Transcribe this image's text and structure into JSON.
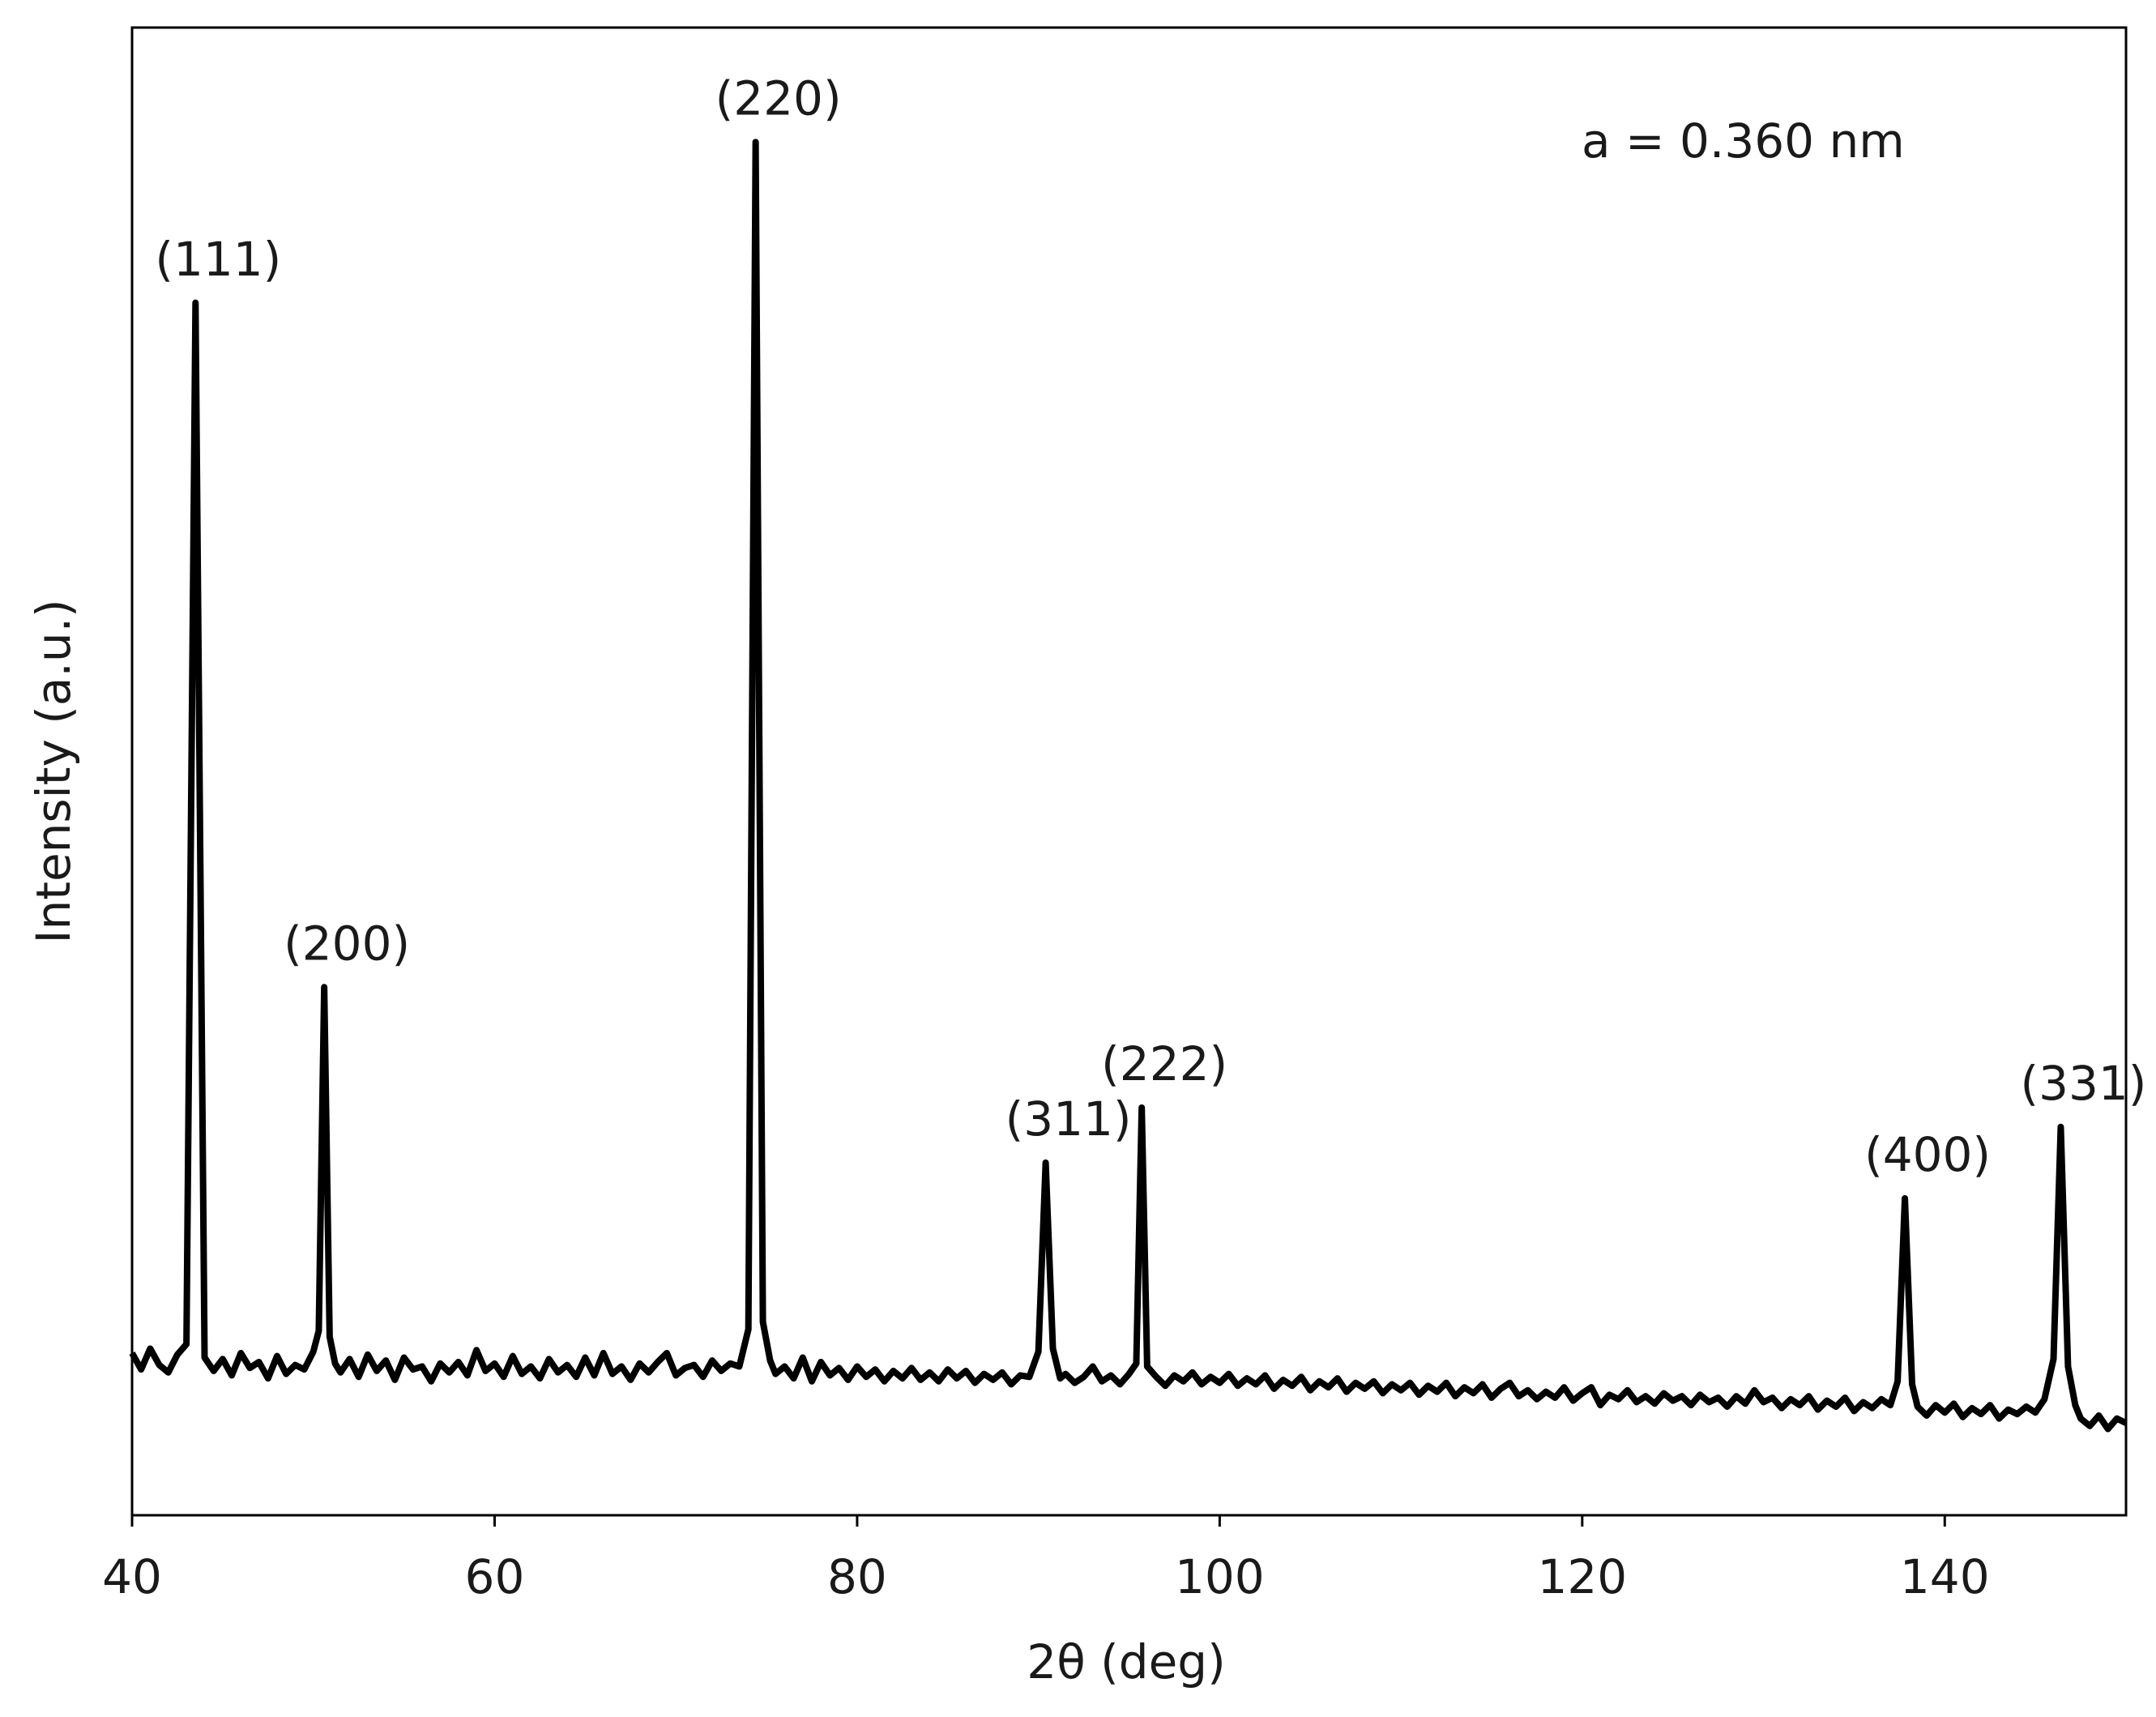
{
  "chart_data": {
    "type": "line",
    "xlabel": "2θ (deg)",
    "ylabel": "Intensity (a.u.)",
    "annotation": "a = 0.360 nm",
    "color": "#000000",
    "xlim": [
      40,
      150
    ],
    "xticks": [
      40,
      60,
      80,
      100,
      120,
      140
    ],
    "ylim": [
      0,
      100
    ],
    "peak_labels": [
      {
        "label": "(111)",
        "x": 43.5
      },
      {
        "label": "(200)",
        "x": 50.6
      },
      {
        "label": "(220)",
        "x": 74.4
      },
      {
        "label": "(311)",
        "x": 90.4
      },
      {
        "label": "(222)",
        "x": 95.7
      },
      {
        "label": "(400)",
        "x": 137.8
      },
      {
        "label": "(331)",
        "x": 146.4
      }
    ],
    "x": [
      40.0,
      40.5,
      41.0,
      41.5,
      42.0,
      42.5,
      43.0,
      43.5,
      44.0,
      44.5,
      45.0,
      45.5,
      46.0,
      46.5,
      47.0,
      47.5,
      48.0,
      48.5,
      49.0,
      49.5,
      50.0,
      50.3,
      50.6,
      50.9,
      51.2,
      51.5,
      52.0,
      52.5,
      53.0,
      53.5,
      54.0,
      54.5,
      55.0,
      55.5,
      56.0,
      56.5,
      57.0,
      57.5,
      58.0,
      58.5,
      59.0,
      59.5,
      60.0,
      60.5,
      61.0,
      61.5,
      62.0,
      62.5,
      63.0,
      63.5,
      64.0,
      64.5,
      65.0,
      65.5,
      66.0,
      66.5,
      67.0,
      67.5,
      68.0,
      68.5,
      69.0,
      69.5,
      70.0,
      70.5,
      71.0,
      71.5,
      72.0,
      72.5,
      73.0,
      73.5,
      74.0,
      74.4,
      74.8,
      75.2,
      75.5,
      76.0,
      76.5,
      77.0,
      77.5,
      78.0,
      78.5,
      79.0,
      79.5,
      80.0,
      80.5,
      81.0,
      81.5,
      82.0,
      82.5,
      83.0,
      83.5,
      84.0,
      84.5,
      85.0,
      85.5,
      86.0,
      86.5,
      87.0,
      87.5,
      88.0,
      88.5,
      89.0,
      89.5,
      90.0,
      90.4,
      90.8,
      91.2,
      91.5,
      92.0,
      92.5,
      93.0,
      93.5,
      94.0,
      94.5,
      95.0,
      95.4,
      95.7,
      96.0,
      96.5,
      97.0,
      97.5,
      98.0,
      98.5,
      99.0,
      99.5,
      100.0,
      100.5,
      101.0,
      101.5,
      102.0,
      102.5,
      103.0,
      103.5,
      104.0,
      104.5,
      105.0,
      105.5,
      106.0,
      106.5,
      107.0,
      107.5,
      108.0,
      108.5,
      109.0,
      109.5,
      110.0,
      110.5,
      111.0,
      111.5,
      112.0,
      112.5,
      113.0,
      113.5,
      114.0,
      114.5,
      115.0,
      115.5,
      116.0,
      116.5,
      117.0,
      117.5,
      118.0,
      118.5,
      119.0,
      119.5,
      120.0,
      120.5,
      121.0,
      121.5,
      122.0,
      122.5,
      123.0,
      123.5,
      124.0,
      124.5,
      125.0,
      125.5,
      126.0,
      126.5,
      127.0,
      127.5,
      128.0,
      128.5,
      129.0,
      129.5,
      130.0,
      130.5,
      131.0,
      131.5,
      132.0,
      132.5,
      133.0,
      133.5,
      134.0,
      134.5,
      135.0,
      135.5,
      136.0,
      136.5,
      137.0,
      137.4,
      137.8,
      138.2,
      138.5,
      139.0,
      139.5,
      140.0,
      140.5,
      141.0,
      141.5,
      142.0,
      142.5,
      143.0,
      143.5,
      144.0,
      144.5,
      145.0,
      145.5,
      146.0,
      146.4,
      146.8,
      147.2,
      147.5,
      148.0,
      148.5,
      149.0,
      149.5,
      150.0
    ],
    "values": [
      10.9,
      9.8,
      11.2,
      10.1,
      9.6,
      10.8,
      11.5,
      81.5,
      10.6,
      9.7,
      10.5,
      9.4,
      10.9,
      9.9,
      10.3,
      9.2,
      10.7,
      9.5,
      10.1,
      9.8,
      11.0,
      12.4,
      35.5,
      12.0,
      10.2,
      9.6,
      10.5,
      9.3,
      10.8,
      9.7,
      10.4,
      9.1,
      10.6,
      9.8,
      10.0,
      9.0,
      10.2,
      9.6,
      10.3,
      9.4,
      11.1,
      9.7,
      10.2,
      9.3,
      10.7,
      9.5,
      10.0,
      9.2,
      10.5,
      9.6,
      10.1,
      9.3,
      10.6,
      9.4,
      10.9,
      9.5,
      10.0,
      9.1,
      10.2,
      9.6,
      10.3,
      10.9,
      9.4,
      9.9,
      10.1,
      9.3,
      10.4,
      9.7,
      10.2,
      10.0,
      12.5,
      92.3,
      13.0,
      10.4,
      9.5,
      10.0,
      9.2,
      10.6,
      9.0,
      10.3,
      9.4,
      9.9,
      9.1,
      10.0,
      9.3,
      9.8,
      9.0,
      9.7,
      9.2,
      9.9,
      9.1,
      9.6,
      9.0,
      9.8,
      9.2,
      9.7,
      8.9,
      9.5,
      9.1,
      9.6,
      8.8,
      9.4,
      9.3,
      11.0,
      23.7,
      11.2,
      9.2,
      9.5,
      8.9,
      9.3,
      10.0,
      9.0,
      9.4,
      8.8,
      9.5,
      10.2,
      27.4,
      10.0,
      9.3,
      8.7,
      9.4,
      9.0,
      9.6,
      8.8,
      9.3,
      8.9,
      9.5,
      8.7,
      9.2,
      8.8,
      9.4,
      8.5,
      9.1,
      8.7,
      9.3,
      8.4,
      9.0,
      8.6,
      9.2,
      8.3,
      8.9,
      8.5,
      9.0,
      8.2,
      8.8,
      8.4,
      8.9,
      8.1,
      8.7,
      8.3,
      8.9,
      8.0,
      8.6,
      8.2,
      8.8,
      7.9,
      8.5,
      8.9,
      8.0,
      8.4,
      7.8,
      8.3,
      7.9,
      8.6,
      7.7,
      8.2,
      8.6,
      7.4,
      8.1,
      7.8,
      8.4,
      7.6,
      8.0,
      7.5,
      8.2,
      7.7,
      8.0,
      7.4,
      8.1,
      7.6,
      7.9,
      7.3,
      8.0,
      7.5,
      8.4,
      7.6,
      7.9,
      7.2,
      7.8,
      7.4,
      8.0,
      7.1,
      7.7,
      7.3,
      7.9,
      7.0,
      7.6,
      7.2,
      7.8,
      7.4,
      9.0,
      21.3,
      8.8,
      7.3,
      6.7,
      7.4,
      6.9,
      7.5,
      6.6,
      7.2,
      6.8,
      7.4,
      6.5,
      7.1,
      6.8,
      7.3,
      6.9,
      7.8,
      10.5,
      26.1,
      10.0,
      7.4,
      6.5,
      6.0,
      6.7,
      5.8,
      6.5,
      6.2
    ]
  }
}
